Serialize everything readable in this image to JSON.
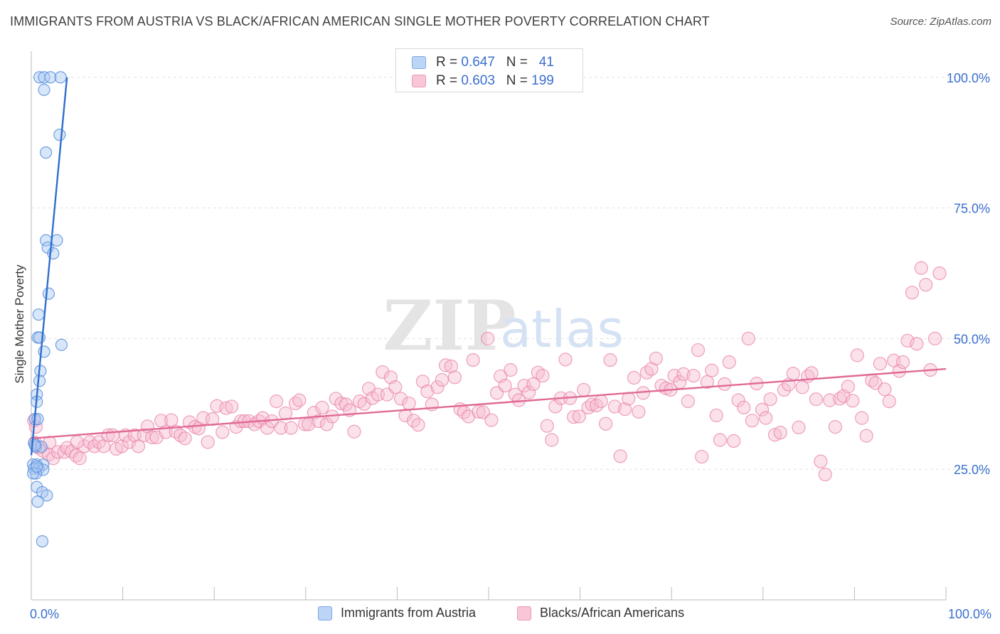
{
  "header": {
    "title": "IMMIGRANTS FROM AUSTRIA VS BLACK/AFRICAN AMERICAN SINGLE MOTHER POVERTY CORRELATION CHART",
    "source": "Source: ZipAtlas.com"
  },
  "watermark": {
    "zip": "ZIP",
    "atlas": "atlas"
  },
  "legend": {
    "rows": [
      {
        "r_label": "R = ",
        "r_value": "0.647",
        "n_label": "N = ",
        "n_value": "41"
      },
      {
        "r_label": "R = ",
        "r_value": "0.603",
        "n_label": "N = ",
        "n_value": "199"
      }
    ]
  },
  "chart_data": {
    "type": "scatter",
    "title": "IMMIGRANTS FROM AUSTRIA VS BLACK/AFRICAN AMERICAN SINGLE MOTHER POVERTY CORRELATION CHART",
    "xlabel": "",
    "ylabel": "Single Mother Poverty",
    "xlim": [
      0,
      100
    ],
    "ylim": [
      0,
      105
    ],
    "x_tick_labels": [
      "0.0%",
      "100.0%"
    ],
    "y_ticks": [
      25,
      50,
      75,
      100
    ],
    "y_tick_labels": [
      "25.0%",
      "50.0%",
      "75.0%",
      "100.0%"
    ],
    "grid": true,
    "legend_position": "top-center",
    "colors": {
      "blue": "#5a8fdc",
      "blue_fill": "#a9c8f2",
      "blue_line": "#2f6fcc",
      "pink": "#e882a8",
      "pink_fill": "#f6bcd0",
      "pink_line": "#e06a95"
    },
    "series": [
      {
        "name": "Immigrants from Austria",
        "color": "#5a8fdc",
        "r": 0.647,
        "n": 41,
        "trend": [
          [
            0.0,
            27.7
          ],
          [
            3.9,
            100.0
          ]
        ],
        "points": [
          [
            0.9,
            100
          ],
          [
            1.4,
            100
          ],
          [
            2.1,
            100
          ],
          [
            3.2,
            100
          ],
          [
            1.4,
            97.6
          ],
          [
            3.1,
            89
          ],
          [
            1.6,
            85.6
          ],
          [
            1.6,
            68.8
          ],
          [
            1.8,
            67.4
          ],
          [
            2.4,
            66.3
          ],
          [
            2.8,
            68.8
          ],
          [
            1.9,
            58.6
          ],
          [
            0.8,
            54.6
          ],
          [
            0.7,
            50.2
          ],
          [
            0.9,
            50.2
          ],
          [
            3.3,
            48.8
          ],
          [
            1.4,
            47.5
          ],
          [
            1.0,
            43.8
          ],
          [
            0.9,
            41.9
          ],
          [
            0.6,
            39.3
          ],
          [
            0.6,
            37.9
          ],
          [
            0.4,
            34.6
          ],
          [
            0.7,
            34.6
          ],
          [
            0.3,
            30
          ],
          [
            0.5,
            29.3
          ],
          [
            1.1,
            29.3
          ],
          [
            0.2,
            25.9
          ],
          [
            0.6,
            25.9
          ],
          [
            1.3,
            25.9
          ],
          [
            0.3,
            25.1
          ],
          [
            0.8,
            25.1
          ],
          [
            1.3,
            24.9
          ],
          [
            0.5,
            24.2
          ],
          [
            0.2,
            24.2
          ],
          [
            0.6,
            21.6
          ],
          [
            1.2,
            20.6
          ],
          [
            1.7,
            20
          ],
          [
            0.7,
            18.8
          ],
          [
            1.2,
            11.2
          ],
          [
            0.6,
            25.5
          ],
          [
            0.4,
            29.6
          ]
        ]
      },
      {
        "name": "Blacks/African Americans",
        "color": "#e882a8",
        "r": 0.603,
        "n": 199,
        "trend": [
          [
            0.0,
            30.9
          ],
          [
            100.0,
            44.2
          ]
        ],
        "points": [
          [
            0.3,
            34.3
          ],
          [
            0.5,
            33.1
          ],
          [
            0.4,
            30.1
          ],
          [
            0.8,
            29.1
          ],
          [
            1.3,
            28.5
          ],
          [
            1.9,
            27.8
          ],
          [
            2.4,
            27.1
          ],
          [
            2.9,
            28.3
          ],
          [
            3.6,
            28.3
          ],
          [
            3.9,
            29.1
          ],
          [
            4.4,
            28.4
          ],
          [
            4.9,
            27.6
          ],
          [
            5.3,
            27.1
          ],
          [
            5.8,
            29.4
          ],
          [
            6.4,
            30.2
          ],
          [
            6.9,
            29.4
          ],
          [
            7.4,
            30.2
          ],
          [
            7.9,
            29.4
          ],
          [
            8.4,
            31.5
          ],
          [
            8.9,
            31.5
          ],
          [
            9.3,
            28.9
          ],
          [
            9.9,
            29.4
          ],
          [
            10.3,
            31.5
          ],
          [
            10.7,
            30.2
          ],
          [
            11.3,
            31.5
          ],
          [
            11.7,
            29.4
          ],
          [
            12.3,
            31.5
          ],
          [
            12.7,
            33.2
          ],
          [
            13.2,
            31.1
          ],
          [
            13.7,
            31.1
          ],
          [
            14.2,
            34.3
          ],
          [
            14.7,
            32.1
          ],
          [
            15.3,
            34.4
          ],
          [
            15.8,
            32.2
          ],
          [
            16.3,
            31.5
          ],
          [
            16.8,
            30.9
          ],
          [
            17.3,
            34.0
          ],
          [
            17.9,
            33.1
          ],
          [
            18.3,
            32.8
          ],
          [
            18.8,
            34.8
          ],
          [
            19.3,
            30.2
          ],
          [
            19.8,
            34.6
          ],
          [
            20.3,
            37.1
          ],
          [
            20.9,
            32.1
          ],
          [
            21.3,
            36.7
          ],
          [
            21.9,
            37.0
          ],
          [
            22.4,
            33.1
          ],
          [
            22.9,
            34.2
          ],
          [
            23.3,
            34.2
          ],
          [
            23.8,
            34.2
          ],
          [
            24.4,
            33.6
          ],
          [
            24.9,
            34.2
          ],
          [
            25.3,
            34.8
          ],
          [
            25.8,
            32.9
          ],
          [
            26.3,
            34.2
          ],
          [
            26.8,
            38.0
          ],
          [
            27.3,
            32.9
          ],
          [
            27.8,
            35.7
          ],
          [
            28.4,
            32.9
          ],
          [
            28.9,
            37.6
          ],
          [
            29.3,
            38.2
          ],
          [
            29.9,
            33.6
          ],
          [
            30.3,
            33.6
          ],
          [
            30.9,
            35.8
          ],
          [
            31.4,
            34.2
          ],
          [
            31.8,
            36.8
          ],
          [
            32.3,
            33.6
          ],
          [
            32.9,
            35.1
          ],
          [
            33.3,
            38.5
          ],
          [
            33.9,
            37.6
          ],
          [
            34.4,
            37.4
          ],
          [
            34.8,
            36.3
          ],
          [
            35.3,
            32.2
          ],
          [
            35.9,
            38.0
          ],
          [
            36.4,
            37.5
          ],
          [
            36.9,
            40.4
          ],
          [
            37.3,
            38.6
          ],
          [
            37.9,
            39.3
          ],
          [
            38.4,
            43.6
          ],
          [
            38.9,
            39.3
          ],
          [
            39.3,
            42.6
          ],
          [
            39.8,
            40.7
          ],
          [
            40.4,
            38.5
          ],
          [
            40.9,
            35.3
          ],
          [
            41.3,
            37.6
          ],
          [
            41.8,
            34.3
          ],
          [
            42.3,
            33.5
          ],
          [
            42.8,
            41.8
          ],
          [
            43.3,
            39.9
          ],
          [
            43.8,
            37.4
          ],
          [
            44.4,
            40.7
          ],
          [
            44.9,
            42.1
          ],
          [
            45.3,
            44.9
          ],
          [
            45.9,
            44.7
          ],
          [
            46.3,
            42.6
          ],
          [
            46.9,
            36.5
          ],
          [
            47.3,
            35.9
          ],
          [
            47.8,
            35.1
          ],
          [
            48.3,
            45.9
          ],
          [
            48.9,
            36.0
          ],
          [
            49.4,
            35.9
          ],
          [
            49.9,
            50.0
          ],
          [
            50.3,
            34.4
          ],
          [
            50.9,
            39.6
          ],
          [
            51.3,
            42.8
          ],
          [
            51.8,
            41.0
          ],
          [
            52.4,
            44.0
          ],
          [
            52.9,
            39.3
          ],
          [
            53.3,
            38.2
          ],
          [
            53.9,
            41.0
          ],
          [
            54.4,
            39.7
          ],
          [
            54.9,
            41.3
          ],
          [
            55.4,
            43.5
          ],
          [
            55.9,
            42.9
          ],
          [
            56.4,
            33.3
          ],
          [
            56.9,
            30.6
          ],
          [
            57.3,
            37.0
          ],
          [
            57.9,
            38.6
          ],
          [
            58.4,
            46.0
          ],
          [
            58.9,
            38.6
          ],
          [
            59.3,
            35.0
          ],
          [
            59.9,
            35.1
          ],
          [
            60.4,
            40.2
          ],
          [
            60.9,
            36.8
          ],
          [
            61.3,
            37.4
          ],
          [
            61.8,
            37.2
          ],
          [
            62.3,
            38.0
          ],
          [
            62.8,
            33.7
          ],
          [
            63.3,
            45.9
          ],
          [
            63.8,
            37.0
          ],
          [
            64.4,
            27.5
          ],
          [
            64.9,
            36.5
          ],
          [
            65.3,
            38.5
          ],
          [
            65.9,
            42.5
          ],
          [
            66.4,
            36.0
          ],
          [
            66.9,
            39.6
          ],
          [
            67.3,
            43.5
          ],
          [
            67.8,
            44.2
          ],
          [
            68.3,
            46.2
          ],
          [
            68.9,
            41.0
          ],
          [
            69.4,
            40.5
          ],
          [
            69.9,
            40.2
          ],
          [
            70.3,
            42.9
          ],
          [
            70.9,
            41.7
          ],
          [
            71.3,
            43.2
          ],
          [
            71.8,
            38.0
          ],
          [
            72.4,
            42.9
          ],
          [
            72.9,
            47.8
          ],
          [
            73.3,
            27.4
          ],
          [
            73.9,
            41.7
          ],
          [
            74.4,
            43.9
          ],
          [
            74.9,
            35.3
          ],
          [
            75.3,
            30.6
          ],
          [
            75.8,
            41.3
          ],
          [
            76.3,
            45.5
          ],
          [
            76.8,
            30.4
          ],
          [
            77.3,
            38.2
          ],
          [
            77.9,
            36.8
          ],
          [
            78.4,
            50.0
          ],
          [
            78.8,
            34.3
          ],
          [
            79.3,
            41.4
          ],
          [
            79.9,
            36.4
          ],
          [
            80.3,
            34.8
          ],
          [
            80.8,
            38.4
          ],
          [
            81.3,
            31.6
          ],
          [
            81.9,
            32.0
          ],
          [
            82.3,
            40.2
          ],
          [
            82.8,
            41.2
          ],
          [
            83.3,
            43.3
          ],
          [
            83.9,
            33.0
          ],
          [
            84.3,
            40.7
          ],
          [
            84.9,
            42.8
          ],
          [
            85.3,
            43.4
          ],
          [
            85.8,
            38.4
          ],
          [
            86.3,
            26.5
          ],
          [
            86.8,
            24.0
          ],
          [
            87.3,
            38.2
          ],
          [
            87.9,
            33.1
          ],
          [
            88.4,
            38.5
          ],
          [
            88.8,
            39.0
          ],
          [
            89.3,
            40.8
          ],
          [
            89.8,
            38.1
          ],
          [
            90.3,
            46.8
          ],
          [
            90.8,
            34.8
          ],
          [
            91.3,
            31.4
          ],
          [
            91.9,
            42.0
          ],
          [
            92.3,
            41.5
          ],
          [
            92.8,
            45.2
          ],
          [
            93.3,
            40.3
          ],
          [
            93.8,
            38.0
          ],
          [
            94.3,
            45.8
          ],
          [
            94.9,
            43.8
          ],
          [
            95.3,
            45.5
          ],
          [
            95.8,
            49.6
          ],
          [
            96.3,
            58.8
          ],
          [
            96.8,
            49.0
          ],
          [
            97.3,
            63.5
          ],
          [
            97.8,
            60.3
          ],
          [
            98.3,
            44.0
          ],
          [
            98.8,
            50.0
          ],
          [
            99.3,
            62.5
          ],
          [
            2.0,
            30.1
          ],
          [
            5.0,
            30.2
          ]
        ]
      }
    ]
  },
  "bottom_legend": {
    "items": [
      {
        "label": "Immigrants from Austria"
      },
      {
        "label": "Blacks/African Americans"
      }
    ]
  }
}
